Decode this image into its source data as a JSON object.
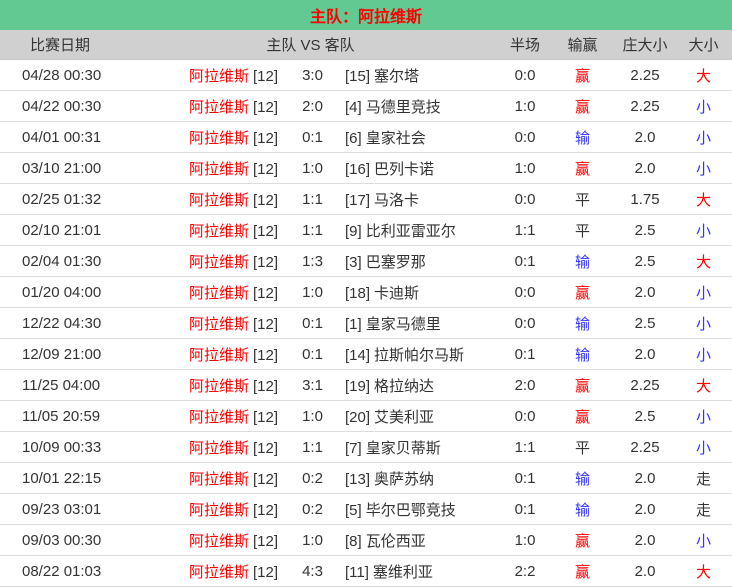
{
  "title": "主队：阿拉维斯",
  "colors": {
    "title_bg": "#62C993",
    "title_text": "#FF0000",
    "header_bg": "#D0D0D0",
    "body_text": "#333333",
    "team_highlight": "#FF0000",
    "win_red": "#FF0000",
    "lose_blue": "#3333FF",
    "neutral_black": "#333333",
    "row_divider": "#DCDCDC"
  },
  "headers": {
    "date": "比赛日期",
    "matchup": "主队 VS 客队",
    "half": "半场",
    "result": "输赢",
    "line": "庄大小",
    "size": "大小"
  },
  "rows": [
    {
      "date": "04/28 00:30",
      "home": "阿拉维斯",
      "home_rank": "[12]",
      "score": "3:0",
      "away_rank": "[15]",
      "away": "塞尔塔",
      "half": "0:0",
      "result": "赢",
      "result_color": "#FF0000",
      "line": "2.25",
      "size": "大",
      "size_color": "#FF0000"
    },
    {
      "date": "04/22 00:30",
      "home": "阿拉维斯",
      "home_rank": "[12]",
      "score": "2:0",
      "away_rank": "[4]",
      "away": "马德里竞技",
      "half": "1:0",
      "result": "赢",
      "result_color": "#FF0000",
      "line": "2.25",
      "size": "小",
      "size_color": "#3333FF"
    },
    {
      "date": "04/01 00:31",
      "home": "阿拉维斯",
      "home_rank": "[12]",
      "score": "0:1",
      "away_rank": "[6]",
      "away": "皇家社会",
      "half": "0:0",
      "result": "输",
      "result_color": "#3333FF",
      "line": "2.0",
      "size": "小",
      "size_color": "#3333FF"
    },
    {
      "date": "03/10 21:00",
      "home": "阿拉维斯",
      "home_rank": "[12]",
      "score": "1:0",
      "away_rank": "[16]",
      "away": "巴列卡诺",
      "half": "1:0",
      "result": "赢",
      "result_color": "#FF0000",
      "line": "2.0",
      "size": "小",
      "size_color": "#3333FF"
    },
    {
      "date": "02/25 01:32",
      "home": "阿拉维斯",
      "home_rank": "[12]",
      "score": "1:1",
      "away_rank": "[17]",
      "away": "马洛卡",
      "half": "0:0",
      "result": "平",
      "result_color": "#333333",
      "line": "1.75",
      "size": "大",
      "size_color": "#FF0000"
    },
    {
      "date": "02/10 21:01",
      "home": "阿拉维斯",
      "home_rank": "[12]",
      "score": "1:1",
      "away_rank": "[9]",
      "away": "比利亚雷亚尔",
      "half": "1:1",
      "result": "平",
      "result_color": "#333333",
      "line": "2.5",
      "size": "小",
      "size_color": "#3333FF"
    },
    {
      "date": "02/04 01:30",
      "home": "阿拉维斯",
      "home_rank": "[12]",
      "score": "1:3",
      "away_rank": "[3]",
      "away": "巴塞罗那",
      "half": "0:1",
      "result": "输",
      "result_color": "#3333FF",
      "line": "2.5",
      "size": "大",
      "size_color": "#FF0000"
    },
    {
      "date": "01/20 04:00",
      "home": "阿拉维斯",
      "home_rank": "[12]",
      "score": "1:0",
      "away_rank": "[18]",
      "away": "卡迪斯",
      "half": "0:0",
      "result": "赢",
      "result_color": "#FF0000",
      "line": "2.0",
      "size": "小",
      "size_color": "#3333FF"
    },
    {
      "date": "12/22 04:30",
      "home": "阿拉维斯",
      "home_rank": "[12]",
      "score": "0:1",
      "away_rank": "[1]",
      "away": "皇家马德里",
      "half": "0:0",
      "result": "输",
      "result_color": "#3333FF",
      "line": "2.5",
      "size": "小",
      "size_color": "#3333FF"
    },
    {
      "date": "12/09 21:00",
      "home": "阿拉维斯",
      "home_rank": "[12]",
      "score": "0:1",
      "away_rank": "[14]",
      "away": "拉斯帕尔马斯",
      "half": "0:1",
      "result": "输",
      "result_color": "#3333FF",
      "line": "2.0",
      "size": "小",
      "size_color": "#3333FF"
    },
    {
      "date": "11/25 04:00",
      "home": "阿拉维斯",
      "home_rank": "[12]",
      "score": "3:1",
      "away_rank": "[19]",
      "away": "格拉纳达",
      "half": "2:0",
      "result": "赢",
      "result_color": "#FF0000",
      "line": "2.25",
      "size": "大",
      "size_color": "#FF0000"
    },
    {
      "date": "11/05 20:59",
      "home": "阿拉维斯",
      "home_rank": "[12]",
      "score": "1:0",
      "away_rank": "[20]",
      "away": "艾美利亚",
      "half": "0:0",
      "result": "赢",
      "result_color": "#FF0000",
      "line": "2.5",
      "size": "小",
      "size_color": "#3333FF"
    },
    {
      "date": "10/09 00:33",
      "home": "阿拉维斯",
      "home_rank": "[12]",
      "score": "1:1",
      "away_rank": "[7]",
      "away": "皇家贝蒂斯",
      "half": "1:1",
      "result": "平",
      "result_color": "#333333",
      "line": "2.25",
      "size": "小",
      "size_color": "#3333FF"
    },
    {
      "date": "10/01 22:15",
      "home": "阿拉维斯",
      "home_rank": "[12]",
      "score": "0:2",
      "away_rank": "[13]",
      "away": "奥萨苏纳",
      "half": "0:1",
      "result": "输",
      "result_color": "#3333FF",
      "line": "2.0",
      "size": "走",
      "size_color": "#333333"
    },
    {
      "date": "09/23 03:01",
      "home": "阿拉维斯",
      "home_rank": "[12]",
      "score": "0:2",
      "away_rank": "[5]",
      "away": "毕尔巴鄂竞技",
      "half": "0:1",
      "result": "输",
      "result_color": "#3333FF",
      "line": "2.0",
      "size": "走",
      "size_color": "#333333"
    },
    {
      "date": "09/03 00:30",
      "home": "阿拉维斯",
      "home_rank": "[12]",
      "score": "1:0",
      "away_rank": "[8]",
      "away": "瓦伦西亚",
      "half": "1:0",
      "result": "赢",
      "result_color": "#FF0000",
      "line": "2.0",
      "size": "小",
      "size_color": "#3333FF"
    },
    {
      "date": "08/22 01:03",
      "home": "阿拉维斯",
      "home_rank": "[12]",
      "score": "4:3",
      "away_rank": "[11]",
      "away": "塞维利亚",
      "half": "2:2",
      "result": "赢",
      "result_color": "#FF0000",
      "line": "2.0",
      "size": "大",
      "size_color": "#FF0000"
    }
  ]
}
